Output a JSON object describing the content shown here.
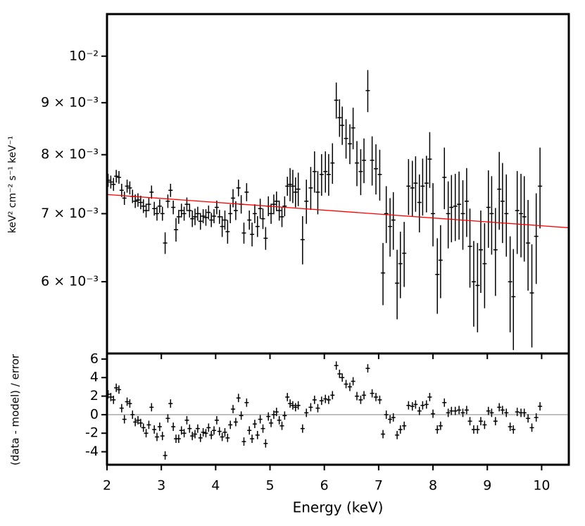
{
  "chart_data": [
    {
      "type": "errorbar",
      "ylabel": "keV² cm⁻² s⁻¹ keV⁻¹",
      "log_y": true,
      "xlim": [
        2,
        10.5
      ],
      "ylim": [
        0.0051,
        0.011
      ],
      "xticks": [
        2,
        3,
        4,
        5,
        6,
        7,
        8,
        9,
        10
      ],
      "yticks": [
        {
          "value": 0.006,
          "label": "6 × 10⁻³"
        },
        {
          "value": 0.007,
          "label": "7 × 10⁻³"
        },
        {
          "value": 0.008,
          "label": "8 × 10⁻³"
        },
        {
          "value": 0.009,
          "label": "9 × 10⁻³"
        },
        {
          "value": 0.01,
          "label": "10⁻²"
        }
      ],
      "series": [
        {
          "color": "#000000",
          "x": [
            2.02,
            2.07,
            2.12,
            2.17,
            2.22,
            2.27,
            2.32,
            2.37,
            2.42,
            2.47,
            2.52,
            2.57,
            2.62,
            2.67,
            2.72,
            2.77,
            2.82,
            2.87,
            2.92,
            2.97,
            3.02,
            3.07,
            3.12,
            3.17,
            3.22,
            3.27,
            3.32,
            3.37,
            3.42,
            3.47,
            3.52,
            3.57,
            3.62,
            3.67,
            3.72,
            3.77,
            3.82,
            3.87,
            3.92,
            3.97,
            4.02,
            4.07,
            4.12,
            4.17,
            4.22,
            4.27,
            4.32,
            4.37,
            4.42,
            4.47,
            4.52,
            4.57,
            4.62,
            4.67,
            4.72,
            4.77,
            4.82,
            4.87,
            4.92,
            4.97,
            5.02,
            5.07,
            5.12,
            5.17,
            5.22,
            5.27,
            5.32,
            5.37,
            5.42,
            5.47,
            5.52,
            5.6,
            5.67,
            5.75,
            5.82,
            5.88,
            5.95,
            6.02,
            6.08,
            6.15,
            6.22,
            6.28,
            6.33,
            6.4,
            6.47,
            6.53,
            6.6,
            6.67,
            6.73,
            6.8,
            6.88,
            6.95,
            7.02,
            7.08,
            7.14,
            7.21,
            7.27,
            7.34,
            7.4,
            7.47,
            7.55,
            7.62,
            7.68,
            7.75,
            7.81,
            7.88,
            7.94,
            8.0,
            8.08,
            8.14,
            8.21,
            8.28,
            8.34,
            8.41,
            8.48,
            8.55,
            8.62,
            8.68,
            8.75,
            8.82,
            8.88,
            8.95,
            9.02,
            9.08,
            9.15,
            9.22,
            9.28,
            9.35,
            9.42,
            9.48,
            9.55,
            9.62,
            9.68,
            9.75,
            9.82,
            9.9,
            9.97
          ],
          "values": [
            0.00755,
            0.00752,
            0.00748,
            0.00762,
            0.0076,
            0.00738,
            0.00725,
            0.00745,
            0.00742,
            0.00728,
            0.0072,
            0.00722,
            0.00718,
            0.00712,
            0.00705,
            0.00715,
            0.00735,
            0.00708,
            0.007,
            0.00712,
            0.007,
            0.00655,
            0.0072,
            0.00738,
            0.0071,
            0.00675,
            0.00695,
            0.00705,
            0.007,
            0.00715,
            0.00705,
            0.00692,
            0.00695,
            0.007,
            0.00688,
            0.00696,
            0.00694,
            0.00702,
            0.0069,
            0.00696,
            0.0071,
            0.00695,
            0.0068,
            0.0069,
            0.00672,
            0.007,
            0.00725,
            0.00705,
            0.00742,
            0.00715,
            0.0067,
            0.00735,
            0.0069,
            0.00668,
            0.007,
            0.0068,
            0.00708,
            0.00692,
            0.00662,
            0.00712,
            0.007,
            0.00715,
            0.0072,
            0.00705,
            0.00695,
            0.00712,
            0.00745,
            0.00748,
            0.00745,
            0.00735,
            0.0074,
            0.0066,
            0.0072,
            0.00742,
            0.0077,
            0.00735,
            0.00765,
            0.0077,
            0.00765,
            0.00785,
            0.00905,
            0.0087,
            0.00855,
            0.0083,
            0.0082,
            0.0085,
            0.00785,
            0.0077,
            0.0079,
            0.00925,
            0.0079,
            0.00775,
            0.00765,
            0.00612,
            0.007,
            0.0068,
            0.0069,
            0.00598,
            0.00625,
            0.0064,
            0.00745,
            0.00742,
            0.0075,
            0.00718,
            0.00745,
            0.0075,
            0.00792,
            0.007,
            0.0061,
            0.0063,
            0.0076,
            0.007,
            0.0071,
            0.00712,
            0.00715,
            0.007,
            0.0072,
            0.0065,
            0.006,
            0.00595,
            0.00645,
            0.00625,
            0.0071,
            0.007,
            0.00645,
            0.0074,
            0.0072,
            0.007,
            0.006,
            0.0058,
            0.00705,
            0.007,
            0.00695,
            0.00655,
            0.00585,
            0.00665,
            0.00745
          ],
          "errors": [
            0.00011,
            0.00011,
            0.00011,
            0.00011,
            0.00011,
            0.00011,
            0.00011,
            0.00011,
            0.00011,
            0.00011,
            0.00011,
            0.00011,
            0.00011,
            0.00011,
            0.00011,
            0.00011,
            0.00011,
            0.00011,
            0.00011,
            0.00011,
            0.00011,
            0.00016,
            0.00011,
            0.00011,
            0.00011,
            0.00018,
            0.00011,
            0.00011,
            0.00011,
            0.00011,
            0.00011,
            0.00013,
            0.00013,
            0.00011,
            0.00013,
            0.00011,
            0.00013,
            0.00011,
            0.00011,
            0.00011,
            0.00011,
            0.00011,
            0.00016,
            0.00015,
            0.00018,
            0.00015,
            0.00015,
            0.00015,
            0.00014,
            0.00015,
            0.00016,
            0.00015,
            0.00015,
            0.00018,
            0.00015,
            0.00016,
            0.00016,
            0.00016,
            0.00017,
            0.00016,
            0.00016,
            0.00016,
            0.00016,
            0.00016,
            0.00016,
            0.00016,
            0.00016,
            0.00028,
            0.00028,
            0.00025,
            0.00028,
            0.00036,
            0.00036,
            0.00036,
            0.00036,
            0.00036,
            0.00036,
            0.00036,
            0.00036,
            0.00036,
            0.00037,
            0.00037,
            0.00037,
            0.00037,
            0.00037,
            0.0004,
            0.0004,
            0.0004,
            0.0004,
            0.00044,
            0.00044,
            0.00044,
            0.00044,
            0.00043,
            0.00045,
            0.00045,
            0.00045,
            0.00047,
            0.00047,
            0.00047,
            0.00047,
            0.00047,
            0.00047,
            0.00047,
            0.00048,
            0.00048,
            0.0005,
            0.0005,
            0.00052,
            0.00052,
            0.00053,
            0.00053,
            0.00054,
            0.00054,
            0.00055,
            0.00055,
            0.00056,
            0.00058,
            0.00058,
            0.0006,
            0.0006,
            0.0006,
            0.00062,
            0.00062,
            0.00064,
            0.00065,
            0.00065,
            0.00065,
            0.00065,
            0.00066,
            0.00066,
            0.00066,
            0.00067,
            0.00067,
            0.00068,
            0.00068,
            0.00068
          ]
        },
        {
          "type": "line",
          "color": "#ff0000",
          "x": [
            2,
            10.5
          ],
          "values": [
            0.00731,
            0.00678
          ]
        }
      ]
    },
    {
      "type": "errorbar",
      "ylabel": "(data - model) / error",
      "xlabel": "Energy (keV)",
      "xlim": [
        2,
        10.5
      ],
      "ylim": [
        -5.4,
        6.6
      ],
      "xticks": [
        2,
        3,
        4,
        5,
        6,
        7,
        8,
        9,
        10
      ],
      "yticks": [
        -4,
        -2,
        0,
        2,
        4,
        6
      ],
      "zero_line_color": "#999999",
      "series": [
        {
          "color": "#000000",
          "error": 0.45,
          "x": [
            2.02,
            2.07,
            2.12,
            2.17,
            2.22,
            2.27,
            2.32,
            2.37,
            2.42,
            2.47,
            2.52,
            2.57,
            2.62,
            2.67,
            2.72,
            2.77,
            2.82,
            2.87,
            2.92,
            2.97,
            3.02,
            3.07,
            3.12,
            3.17,
            3.22,
            3.27,
            3.32,
            3.37,
            3.42,
            3.47,
            3.52,
            3.57,
            3.62,
            3.67,
            3.72,
            3.77,
            3.82,
            3.87,
            3.92,
            3.97,
            4.02,
            4.07,
            4.12,
            4.17,
            4.22,
            4.27,
            4.32,
            4.37,
            4.42,
            4.47,
            4.52,
            4.57,
            4.62,
            4.67,
            4.72,
            4.77,
            4.82,
            4.87,
            4.92,
            4.97,
            5.02,
            5.07,
            5.12,
            5.17,
            5.22,
            5.27,
            5.32,
            5.37,
            5.42,
            5.47,
            5.52,
            5.6,
            5.67,
            5.75,
            5.82,
            5.88,
            5.95,
            6.02,
            6.08,
            6.15,
            6.22,
            6.28,
            6.33,
            6.4,
            6.47,
            6.53,
            6.6,
            6.67,
            6.73,
            6.8,
            6.88,
            6.95,
            7.02,
            7.08,
            7.14,
            7.21,
            7.27,
            7.34,
            7.4,
            7.47,
            7.55,
            7.62,
            7.68,
            7.75,
            7.81,
            7.88,
            7.94,
            8.0,
            8.08,
            8.14,
            8.21,
            8.28,
            8.34,
            8.41,
            8.48,
            8.55,
            8.62,
            8.68,
            8.75,
            8.82,
            8.88,
            8.95,
            9.02,
            9.08,
            9.15,
            9.22,
            9.28,
            9.35,
            9.42,
            9.48,
            9.55,
            9.62,
            9.68,
            9.75,
            9.82,
            9.9,
            9.97
          ],
          "values": [
            2.2,
            1.9,
            1.6,
            2.9,
            2.7,
            0.7,
            -0.5,
            1.4,
            1.2,
            0,
            -0.8,
            -0.6,
            -0.9,
            -1.4,
            -2.0,
            -1.1,
            0.8,
            -1.6,
            -2.4,
            -1.3,
            -2.3,
            -4.4,
            -0.4,
            1.2,
            -1.3,
            -2.6,
            -2.6,
            -1.7,
            -2.0,
            -0.6,
            -1.5,
            -2.3,
            -2.1,
            -1.5,
            -2.5,
            -1.9,
            -2.0,
            -1.4,
            -2.2,
            -1.7,
            -0.6,
            -1.8,
            -2.4,
            -1.9,
            -2.5,
            -1.1,
            0.6,
            -0.8,
            1.8,
            -0.1,
            -2.9,
            1.3,
            -1.7,
            -2.6,
            -1.0,
            -2.2,
            -0.5,
            -1.5,
            -3.1,
            -0.2,
            -0.9,
            0,
            0.3,
            -0.6,
            -1.2,
            -0.1,
            1.9,
            1.2,
            1.0,
            0.8,
            1.0,
            -1.5,
            0.2,
            0.8,
            1.6,
            0.7,
            1.5,
            1.7,
            1.6,
            2.1,
            5.3,
            4.4,
            4.0,
            3.3,
            3.0,
            3.6,
            2.0,
            1.6,
            2.1,
            5.0,
            2.3,
            1.9,
            1.6,
            -2.1,
            0,
            -0.5,
            -0.3,
            -2.2,
            -1.6,
            -1.2,
            1.0,
            0.9,
            1.1,
            0.4,
            1.0,
            1.1,
            1.9,
            0.1,
            -1.6,
            -1.2,
            1.3,
            0.2,
            0.4,
            0.4,
            0.5,
            0.2,
            0.5,
            -0.7,
            -1.6,
            -1.6,
            -0.7,
            -1.1,
            0.4,
            0.2,
            -0.7,
            0.8,
            0.5,
            0.2,
            -1.3,
            -1.6,
            0.3,
            0.2,
            0.2,
            -0.4,
            -1.4,
            -0.3,
            0.9
          ]
        }
      ]
    }
  ]
}
